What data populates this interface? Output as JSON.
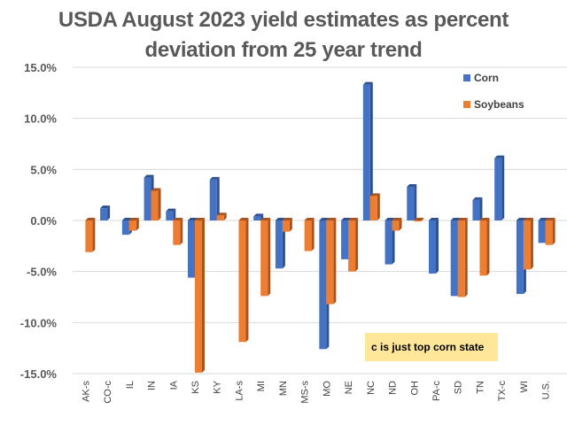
{
  "chart_data": {
    "type": "bar",
    "title": "USDA August 2023 yield estimates as percent deviation from 25 year trend",
    "title_lines": [
      "USDA August 2023 yield estimates as percent",
      "deviation from 25 year trend"
    ],
    "xlabel": "",
    "ylabel": "",
    "ylim": [
      -15,
      15
    ],
    "yticks": [
      15,
      10,
      5,
      0,
      -5,
      -10,
      -15
    ],
    "ytick_labels": [
      "15.0%",
      "10.0%",
      "5.0%",
      "0.0%",
      "-5.0%",
      "-10.0%",
      "-15.0%"
    ],
    "grid": true,
    "legend_position": "top-right",
    "categories": [
      "AK-s",
      "CO-c",
      "IL",
      "IN",
      "IA",
      "KS",
      "KY",
      "LA-s",
      "MI",
      "MN",
      "MS-s",
      "MO",
      "NE",
      "NC",
      "ND",
      "OH",
      "PA-c",
      "SD",
      "TN",
      "TX-c",
      "WI",
      "U.S."
    ],
    "series": [
      {
        "name": "Corn",
        "color": "#4472C4",
        "values": [
          null,
          1.2,
          -1.4,
          4.2,
          0.9,
          -5.6,
          4.0,
          null,
          0.4,
          -4.7,
          null,
          -12.6,
          -3.8,
          13.3,
          -4.3,
          3.3,
          -5.2,
          -7.4,
          2.0,
          6.1,
          -7.2,
          -2.2
        ]
      },
      {
        "name": "Soybeans",
        "color": "#ED7D31",
        "values": [
          -3.1,
          null,
          -1.0,
          2.9,
          -2.4,
          -14.9,
          0.5,
          -11.9,
          -7.4,
          -1.1,
          -3.0,
          -8.2,
          -5.0,
          2.4,
          -1.0,
          -0.1,
          null,
          -7.5,
          -5.4,
          null,
          -4.8,
          -2.4
        ]
      }
    ],
    "annotations": [
      {
        "text": "c is just top corn state",
        "background": "#FFE699"
      }
    ]
  }
}
